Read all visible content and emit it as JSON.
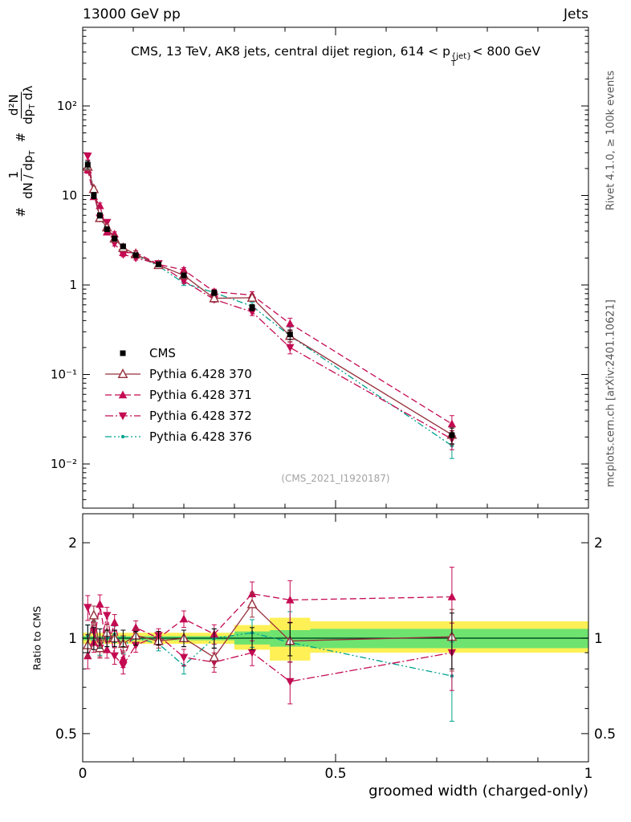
{
  "header": {
    "left": "13000 GeV pp",
    "right": "Jets"
  },
  "side_notes": {
    "top": "Rivet 4.1.0, ≥ 100k events",
    "bottom": "mcplots.cern.ch [arXiv:2401.10621]"
  },
  "labels": {
    "title_prefix": "CMS, 13 TeV, AK8 jets, central dijet region, 614 < p",
    "title_sup": "{jet}",
    "title_sub": "T",
    "title_suffix": "< 800 GeV",
    "xlabel": "groomed width (charged-only)",
    "ratio_ylabel": "Ratio to CMS",
    "watermark": "(CMS_2021_I1920187)",
    "ylabel": {
      "hash1": "#",
      "f1num": "1",
      "f1den": "dN / dp",
      "f1den_sub": "T",
      "hash2": "#",
      "f2num": "d²N",
      "f2den_a": "dp",
      "f2den_sub": "T",
      "f2den_b": " dλ"
    }
  },
  "chart_data": {
    "type": "line",
    "title": "CMS, 13 TeV, AK8 jets, central dijet region, 614 < pT^{jet} < 800 GeV",
    "xlabel": "groomed width (charged-only)",
    "ylabel": "# 1/(dN/dpT) d²N/(dpT dλ)",
    "ratio_ylabel": "Ratio to CMS",
    "legend_position": "middle-left",
    "grid": false,
    "axes": {
      "x": {
        "min": 0,
        "max": 1,
        "major": [
          0,
          0.5,
          1
        ],
        "major_labels": [
          "0",
          "0.5",
          "1"
        ],
        "minor_step": 0.1
      },
      "y_main": {
        "scale": "log",
        "min": 0.0032,
        "max": 760,
        "major": [
          100,
          10,
          1,
          0.1,
          0.01
        ],
        "major_labels": [
          "10²",
          "10",
          "1",
          "10⁻¹",
          "10⁻²"
        ]
      },
      "y_ratio": {
        "scale": "log",
        "min": 0.41,
        "max": 2.47,
        "major": [
          2,
          1,
          0.5
        ],
        "major_labels": [
          "2",
          "1",
          "0.5"
        ],
        "minor": [
          0.6,
          0.7,
          0.8,
          0.9
        ]
      }
    },
    "x": [
      0.01,
      0.022,
      0.034,
      0.048,
      0.063,
      0.08,
      0.105,
      0.15,
      0.2,
      0.26,
      0.335,
      0.41,
      0.73
    ],
    "series": [
      {
        "label": "CMS",
        "color": "#000000",
        "marker": "square",
        "line": "none",
        "dash": "",
        "values": [
          22.0,
          10.0,
          6.0,
          4.2,
          3.3,
          2.7,
          2.15,
          1.7,
          1.28,
          0.82,
          0.56,
          0.28,
          0.021
        ],
        "err_rel": [
          0.1,
          0.08,
          0.07,
          0.06,
          0.06,
          0.06,
          0.05,
          0.05,
          0.06,
          0.07,
          0.08,
          0.12,
          0.2
        ]
      },
      {
        "label": "Pythia 6.428 370",
        "color": "#97303c",
        "marker": "triangle-open",
        "line": "solid",
        "dash": "",
        "values": [
          20.9,
          11.8,
          5.6,
          4.4,
          3.3,
          2.6,
          2.2,
          1.67,
          1.28,
          0.71,
          0.72,
          0.27,
          0.0212
        ],
        "ratio": [
          0.95,
          1.18,
          0.93,
          1.04,
          1.0,
          0.96,
          1.02,
          0.98,
          1.0,
          0.87,
          1.28,
          0.98,
          1.01
        ],
        "err_rel": [
          0.08,
          0.07,
          0.06,
          0.06,
          0.06,
          0.06,
          0.05,
          0.05,
          0.06,
          0.07,
          0.09,
          0.14,
          0.22
        ]
      },
      {
        "label": "Pythia 6.428 371",
        "color": "#c40a52",
        "marker": "triangle",
        "line": "dashed",
        "dash": "8,4",
        "values": [
          19.4,
          9.7,
          7.7,
          3.9,
          3.7,
          2.3,
          2.3,
          1.7,
          1.47,
          0.84,
          0.77,
          0.37,
          0.028
        ],
        "ratio": [
          0.88,
          0.97,
          1.28,
          0.92,
          1.12,
          0.86,
          1.08,
          1.0,
          1.15,
          1.03,
          1.38,
          1.32,
          1.35
        ],
        "err_rel": [
          0.09,
          0.07,
          0.07,
          0.06,
          0.06,
          0.06,
          0.05,
          0.05,
          0.06,
          0.07,
          0.09,
          0.15,
          0.24
        ]
      },
      {
        "label": "Pythia 6.428 372",
        "color": "#c40a52",
        "marker": "triangle-down",
        "line": "dashdot",
        "dash": "10,3,2,3",
        "values": [
          27.5,
          10.5,
          5.6,
          5.0,
          2.9,
          2.2,
          2.0,
          1.73,
          1.11,
          0.69,
          0.5,
          0.2,
          0.019
        ],
        "ratio": [
          1.25,
          1.05,
          0.93,
          1.18,
          0.88,
          0.82,
          0.95,
          1.02,
          0.87,
          0.84,
          0.9,
          0.73,
          0.9
        ],
        "err_rel": [
          0.09,
          0.07,
          0.07,
          0.06,
          0.06,
          0.06,
          0.05,
          0.05,
          0.06,
          0.07,
          0.09,
          0.15,
          0.24
        ]
      },
      {
        "label": "Pythia 6.428 376",
        "color": "#00a28f",
        "marker": "dot",
        "line": "dashdotdot",
        "dash": "8,3,2,3,2,3",
        "values": [
          22.4,
          10.6,
          5.6,
          4.2,
          3.4,
          2.6,
          2.15,
          1.63,
          1.05,
          0.82,
          0.58,
          0.27,
          0.016
        ],
        "ratio": [
          1.02,
          1.06,
          0.94,
          1.0,
          1.03,
          0.95,
          1.0,
          0.96,
          0.82,
          1.0,
          1.04,
          0.97,
          0.76
        ],
        "err_rel": [
          0.08,
          0.07,
          0.06,
          0.06,
          0.06,
          0.06,
          0.05,
          0.05,
          0.06,
          0.07,
          0.1,
          0.25,
          0.28
        ]
      }
    ],
    "ratio_bands": [
      {
        "x0": 0.0,
        "x1": 0.3,
        "yellow": [
          0.96,
          1.04
        ],
        "green": [
          0.985,
          1.015
        ]
      },
      {
        "x0": 0.3,
        "x1": 0.37,
        "yellow": [
          0.92,
          1.1
        ],
        "green": [
          0.955,
          1.05
        ]
      },
      {
        "x0": 0.37,
        "x1": 0.45,
        "yellow": [
          0.85,
          1.16
        ],
        "green": [
          0.94,
          1.06
        ]
      },
      {
        "x0": 0.45,
        "x1": 1.0,
        "yellow": [
          0.9,
          1.13
        ],
        "green": [
          0.93,
          1.07
        ]
      }
    ],
    "band_colors": {
      "yellow": "#fff056",
      "green": "#6fe36f",
      "reference_line": "#00a24a"
    }
  }
}
